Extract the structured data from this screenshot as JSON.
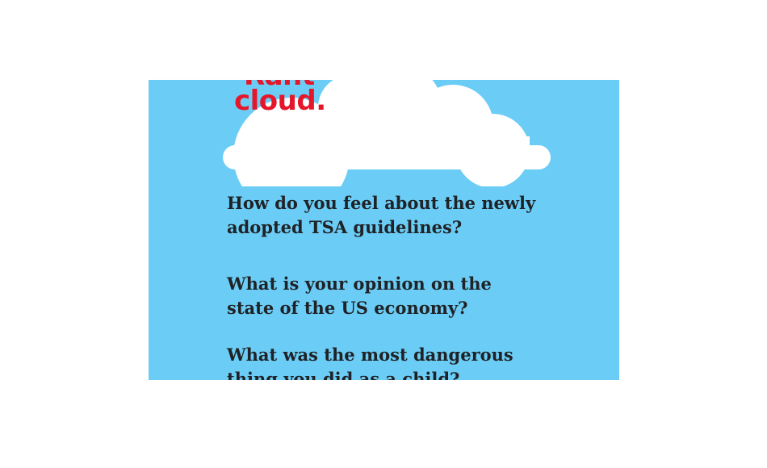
{
  "logo": {
    "line1": "Rant",
    "line2": "cloud.",
    "brand_color": "#e5162a"
  },
  "background_color": "#6bcdf5",
  "questions": [
    {
      "text": "How do you feel about the newly adopted TSA guidelines?"
    },
    {
      "text": "What is your opinion on the state of the US economy?"
    },
    {
      "text": "What was the most dangerous thing you did as a child?"
    }
  ]
}
